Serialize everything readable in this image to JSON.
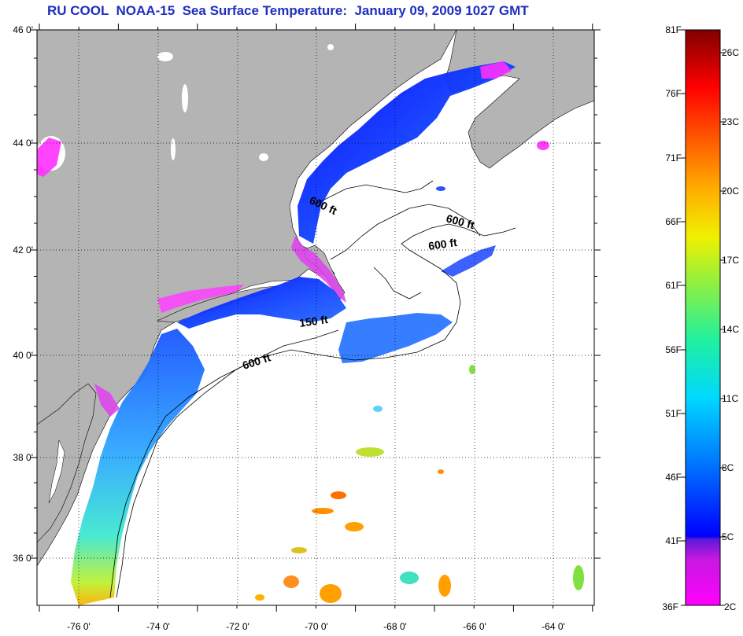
{
  "title": "RU COOL  NOAA-15  Sea Surface Temperature:  January 09, 2009 1027 GMT",
  "map": {
    "lat_ticks": [
      "46 0'",
      "44 0'",
      "42 0'",
      "40 0'",
      "38 0'",
      "36 0'"
    ],
    "lon_ticks": [
      "-76 0'",
      "-74 0'",
      "-72 0'",
      "-70 0'",
      "-68 0'",
      "-66 0'",
      "-64 0'"
    ],
    "contour_labels": [
      "600 ft",
      "600 ft",
      "600 ft",
      "150 ft",
      "600 ft"
    ],
    "colors": {
      "land": "#b4b4b4",
      "ocean": "#ffffff",
      "grid": "#000000"
    }
  },
  "colorbar": {
    "fahrenheit": [
      "81F",
      "76F",
      "71F",
      "66F",
      "61F",
      "56F",
      "51F",
      "46F",
      "41F",
      "36F"
    ],
    "celsius": [
      "26C",
      "23C",
      "20C",
      "17C",
      "14C",
      "11C",
      "8C",
      "5C",
      "2C"
    ]
  }
}
